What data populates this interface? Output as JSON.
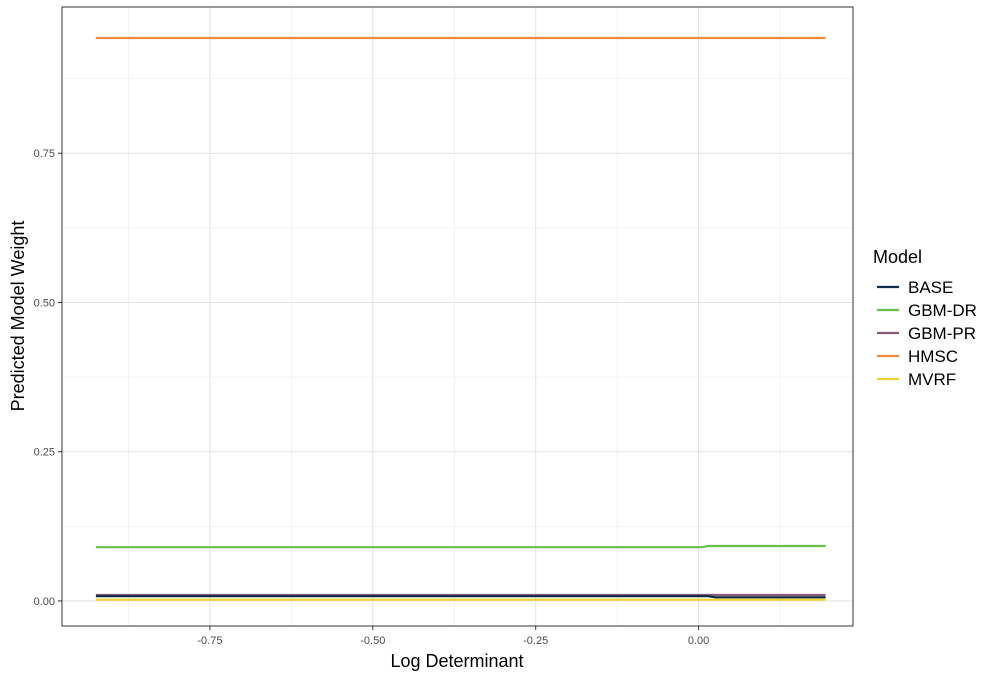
{
  "chart_data": {
    "type": "line",
    "title": "",
    "xlabel": "Log Determinant",
    "ylabel": "Predicted Model Weight",
    "xlim": [
      -0.977,
      0.237
    ],
    "ylim": [
      -0.042,
      0.995
    ],
    "x_ticks": [
      -0.75,
      -0.5,
      -0.25,
      0.0
    ],
    "x_tick_labels": [
      "-0.75",
      "-0.50",
      "-0.25",
      "0.00"
    ],
    "y_ticks": [
      0.0,
      0.25,
      0.5,
      0.75
    ],
    "y_tick_labels": [
      "0.00",
      "0.25",
      "0.50",
      "0.75"
    ],
    "grid": true,
    "legend": {
      "title": "Model",
      "position": "right"
    },
    "series": [
      {
        "name": "BASE",
        "color": "#0b2a46",
        "x": [
          -0.925,
          0.015,
          0.025,
          0.195
        ],
        "y": [
          0.008,
          0.008,
          0.006,
          0.006
        ]
      },
      {
        "name": "GBM-DR",
        "color": "#6abf4b",
        "x": [
          -0.925,
          0.005,
          0.015,
          0.195
        ],
        "y": [
          0.09,
          0.09,
          0.092,
          0.092
        ]
      },
      {
        "name": "GBM-PR",
        "color": "#8b5a7a",
        "x": [
          -0.925,
          0.195
        ],
        "y": [
          0.01,
          0.01
        ]
      },
      {
        "name": "HMSC",
        "color": "#f08a3c",
        "x": [
          -0.925,
          0.195
        ],
        "y": [
          0.943,
          0.943
        ]
      },
      {
        "name": "MVRF",
        "color": "#f2d22e",
        "x": [
          -0.925,
          0.195
        ],
        "y": [
          0.002,
          0.002
        ]
      }
    ]
  }
}
